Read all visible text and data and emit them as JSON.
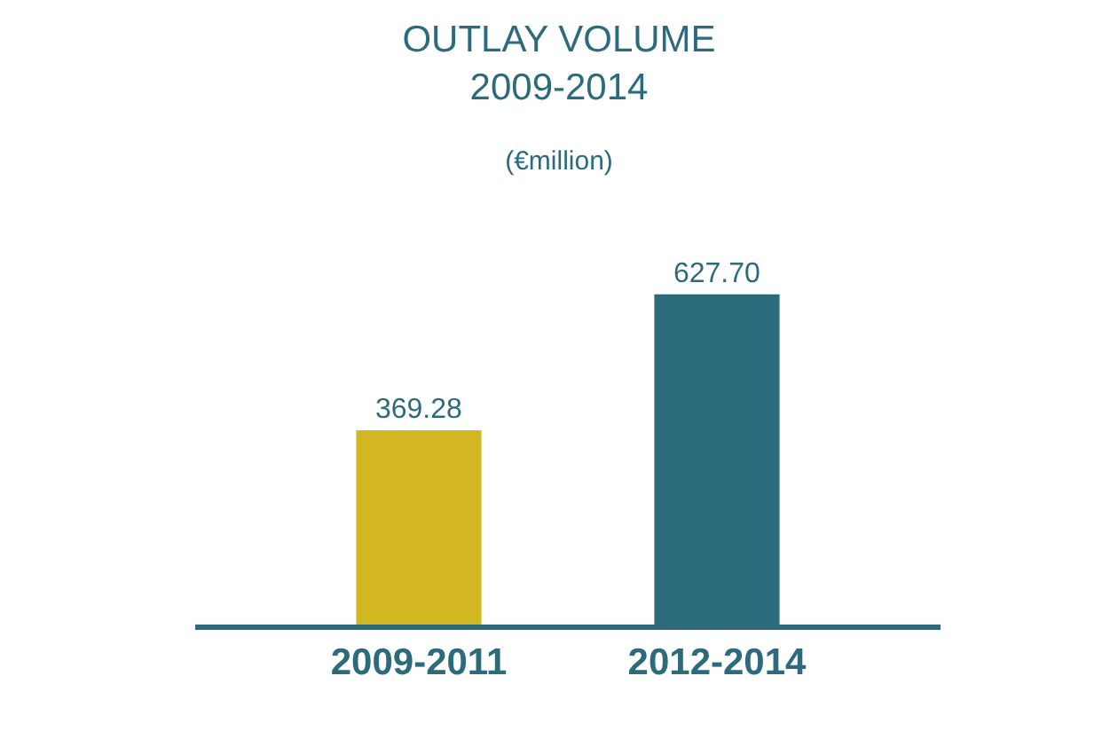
{
  "chart_data": {
    "type": "bar",
    "title": "OUTLAY VOLUME\n2009-2014",
    "subtitle": "(€million)",
    "categories": [
      "2009-2011",
      "2012-2014"
    ],
    "values": [
      369.28,
      627.7
    ],
    "value_labels": [
      "369.28",
      "627.70"
    ],
    "colors": [
      "#d2b622",
      "#2b6b7b"
    ]
  }
}
